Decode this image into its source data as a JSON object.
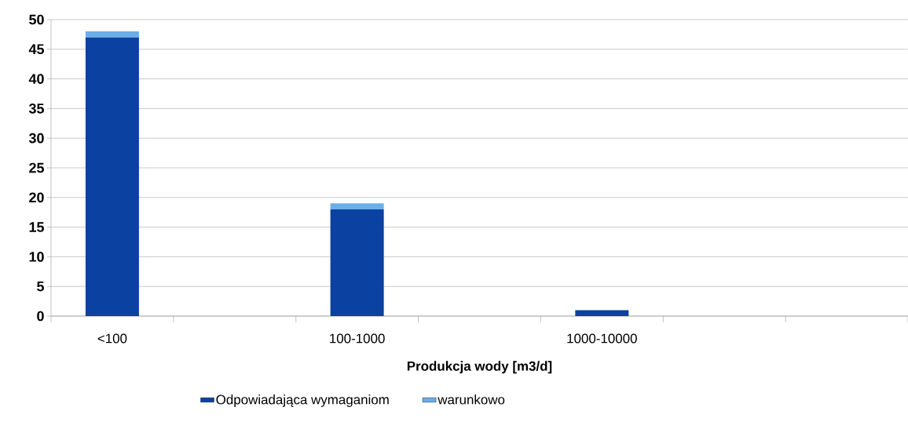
{
  "chart_data": {
    "type": "bar",
    "stacked": true,
    "xlabel": "Produkcja wody [m3/d]",
    "categories": [
      "<100",
      null,
      "100-1000",
      null,
      "1000-10000",
      null,
      null
    ],
    "series": [
      {
        "name": "Odpowiadająca wymaganiom",
        "color": "#0b41a0",
        "values": [
          47,
          null,
          18,
          null,
          1,
          null,
          null
        ]
      },
      {
        "name": "warunkowo",
        "color": "#6aaee8",
        "values": [
          1,
          null,
          1,
          null,
          0,
          null,
          null
        ]
      }
    ],
    "ylim": [
      0,
      50
    ],
    "yticks": [
      0,
      5,
      10,
      15,
      20,
      25,
      30,
      35,
      40,
      45,
      50
    ],
    "grid": "y",
    "legend": "bottom"
  }
}
